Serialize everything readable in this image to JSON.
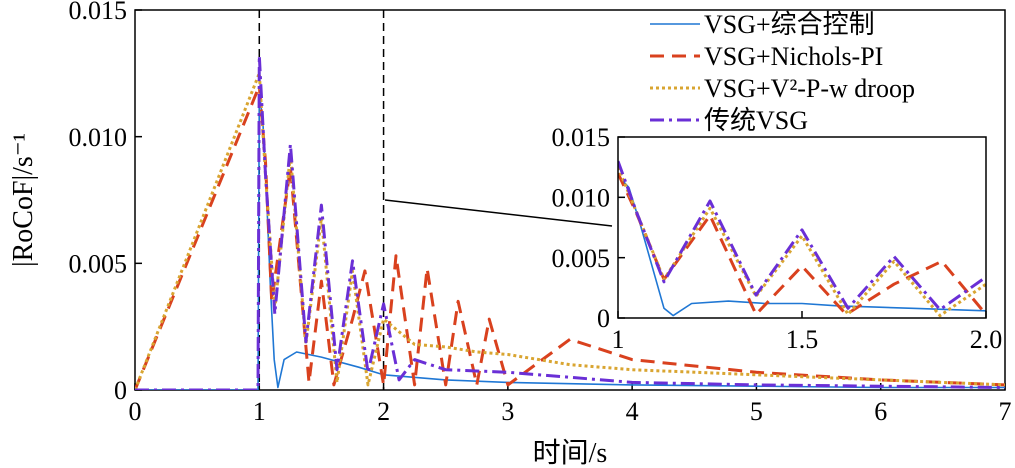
{
  "chart_data": [
    {
      "type": "line",
      "xlabel": "时间/s",
      "ylabel": "|RoCoF|/s⁻¹",
      "xlim": [
        0,
        7
      ],
      "ylim": [
        0,
        0.015
      ],
      "xticks": [
        "0",
        "1",
        "2",
        "3",
        "4",
        "5",
        "6",
        "7"
      ],
      "yticks": [
        "0",
        "0.005",
        "0.010",
        "0.015"
      ],
      "vlines_dashed": [
        1,
        2
      ],
      "legend_placement": "top-right",
      "series": [
        {
          "name": "VSG+综合控制",
          "color": "#1f77d4",
          "dash": "solid",
          "x": [
            0,
            0.99,
            1.0,
            1.03,
            1.06,
            1.09,
            1.12,
            1.15,
            1.2,
            1.3,
            1.5,
            1.8,
            2.0,
            2.5,
            3.0,
            4.0,
            5.0,
            6.0,
            7.0
          ],
          "y": [
            0,
            0,
            0.0118,
            0.0105,
            0.0075,
            0.004,
            0.0012,
            0.0001,
            0.0012,
            0.0015,
            0.0013,
            0.0009,
            0.0006,
            0.0004,
            0.0003,
            0.0002,
            0.00015,
            0.0001,
            0.0001
          ]
        },
        {
          "name": "VSG+Nichols-PI",
          "color": "#d9411e",
          "dash": "dashed",
          "x": [
            0,
            1.0,
            1.05,
            1.1,
            1.25,
            1.4,
            1.5,
            1.6,
            1.75,
            1.85,
            2.0,
            2.1,
            2.25,
            2.35,
            2.5,
            2.6,
            2.75,
            2.85,
            3.0,
            3.5,
            4.0,
            5.0,
            6.0,
            7.0
          ],
          "y": [
            0,
            0.012,
            0.009,
            0.0035,
            0.0088,
            0.0003,
            0.0043,
            0.0002,
            0.0028,
            0.0047,
            0.0002,
            0.0053,
            0.0002,
            0.0048,
            0.0002,
            0.0035,
            0.0002,
            0.0028,
            0.0002,
            0.002,
            0.0012,
            0.0007,
            0.0004,
            0.0002
          ]
        },
        {
          "name": "VSG+V²-P-w droop",
          "color": "#d9a531",
          "dash": "dotted",
          "x": [
            0,
            1.0,
            1.05,
            1.125,
            1.25,
            1.375,
            1.5,
            1.625,
            1.75,
            1.875,
            2.0,
            2.25,
            2.5,
            2.75,
            3.0,
            3.5,
            4.0,
            5.0,
            6.0,
            7.0
          ],
          "y": [
            0,
            0.0125,
            0.0085,
            0.0032,
            0.0093,
            0.0018,
            0.0068,
            0.0003,
            0.0047,
            0.0002,
            0.0028,
            0.0018,
            0.0017,
            0.0015,
            0.0014,
            0.001,
            0.0008,
            0.0006,
            0.0004,
            0.0002
          ]
        },
        {
          "name": "传统VSG",
          "color": "#6a2fd6",
          "dash": "dashdot",
          "x": [
            0,
            0.99,
            1.0,
            1.05,
            1.125,
            1.25,
            1.375,
            1.5,
            1.625,
            1.75,
            1.875,
            2.0,
            2.125,
            2.25,
            2.5,
            3.0,
            3.5,
            4.0,
            5.0,
            6.0,
            7.0
          ],
          "y": [
            0,
            0,
            0.0132,
            0.0085,
            0.003,
            0.0097,
            0.0019,
            0.0073,
            0.0008,
            0.0051,
            0.0007,
            0.0034,
            0.0004,
            0.0012,
            0.0008,
            0.0007,
            0.0005,
            0.0003,
            0.0002,
            0.00015,
            0.0001
          ]
        }
      ]
    },
    {
      "type": "line",
      "placement": "inset",
      "xlim": [
        1,
        2
      ],
      "ylim": [
        0,
        0.015
      ],
      "xticks": [
        "1",
        "1.5",
        "2.0"
      ],
      "yticks": [
        "0",
        "0.005",
        "0.010",
        "0.015"
      ],
      "series": [
        {
          "name": "VSG+综合控制",
          "color": "#1f77d4",
          "dash": "solid",
          "x": [
            1.0,
            1.03,
            1.06,
            1.1,
            1.125,
            1.15,
            1.2,
            1.3,
            1.4,
            1.5,
            1.6,
            1.7,
            1.8,
            1.9,
            2.0
          ],
          "y": [
            0.0118,
            0.0108,
            0.0078,
            0.0035,
            0.0008,
            0.0002,
            0.0012,
            0.0014,
            0.0012,
            0.0012,
            0.001,
            0.0009,
            0.0008,
            0.0007,
            0.0006
          ]
        },
        {
          "name": "VSG+Nichols-PI",
          "color": "#d9411e",
          "dash": "dashed",
          "x": [
            1.0,
            1.05,
            1.125,
            1.25,
            1.375,
            1.5,
            1.62,
            1.75,
            1.88,
            2.0
          ],
          "y": [
            0.012,
            0.0087,
            0.0032,
            0.0085,
            0.0003,
            0.0043,
            0.0003,
            0.0028,
            0.0047,
            0.0003
          ]
        },
        {
          "name": "VSG+V²-P-w droop",
          "color": "#d9a531",
          "dash": "dotted",
          "x": [
            1.0,
            1.05,
            1.125,
            1.25,
            1.375,
            1.5,
            1.625,
            1.75,
            1.875,
            2.0
          ],
          "y": [
            0.0125,
            0.0088,
            0.0032,
            0.0091,
            0.0018,
            0.0068,
            0.0003,
            0.0047,
            0.0002,
            0.0028
          ]
        },
        {
          "name": "传统VSG",
          "color": "#6a2fd6",
          "dash": "dashdot",
          "x": [
            1.0,
            1.05,
            1.125,
            1.25,
            1.375,
            1.5,
            1.625,
            1.75,
            1.875,
            2.0
          ],
          "y": [
            0.013,
            0.0088,
            0.003,
            0.0097,
            0.0019,
            0.0073,
            0.0008,
            0.0051,
            0.0007,
            0.0034
          ]
        }
      ]
    }
  ]
}
